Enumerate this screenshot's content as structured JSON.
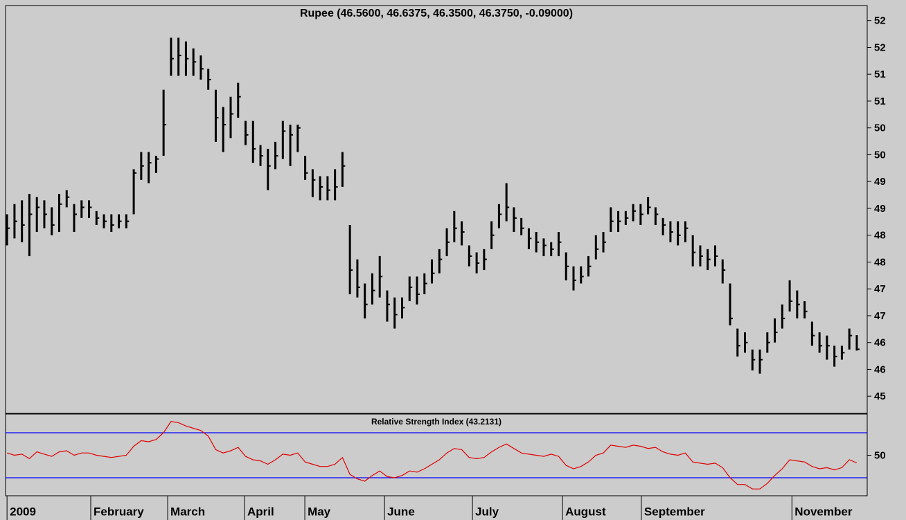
{
  "chart_data": [
    {
      "type": "ohlc",
      "title": "Rupee (46.5600, 46.6375, 46.3500, 46.3750, -0.09000)",
      "color": "#000000",
      "high": [
        48.89,
        49.08,
        49.15,
        49.27,
        49.21,
        49.15,
        49.02,
        49.27,
        49.34,
        49.08,
        49.15,
        49.15,
        48.95,
        48.89,
        48.89,
        48.89,
        48.89,
        49.73,
        50.05,
        50.05,
        49.98,
        51.21,
        52.18,
        52.18,
        52.11,
        51.98,
        51.85,
        51.6,
        51.21,
        50.89,
        51.08,
        51.34,
        50.63,
        50.63,
        50.18,
        50.11,
        50.24,
        50.63,
        50.56,
        50.56,
        49.98,
        49.73,
        49.6,
        49.6,
        49.73,
        50.05,
        48.69,
        48.05,
        47.6,
        47.79,
        48.11,
        47.47,
        47.34,
        47.34,
        47.73,
        47.73,
        47.79,
        48.05,
        48.24,
        48.63,
        48.95,
        48.76,
        48.31,
        48.18,
        48.24,
        48.76,
        49.08,
        49.47,
        49.02,
        48.82,
        48.63,
        48.56,
        48.44,
        48.37,
        48.56,
        48.18,
        47.92,
        47.92,
        48.11,
        48.5,
        48.56,
        49.02,
        48.95,
        48.95,
        49.08,
        49.08,
        49.21,
        49.02,
        48.82,
        48.76,
        48.76,
        48.76,
        48.5,
        48.31,
        48.24,
        48.31,
        48.05,
        47.6,
        46.76,
        46.69,
        46.37,
        46.37,
        46.69,
        46.95,
        47.21,
        47.66,
        47.47,
        47.27,
        46.89,
        46.69,
        46.63,
        46.44,
        46.44,
        46.76,
        46.6375
      ],
      "low": [
        48.31,
        48.44,
        48.37,
        48.11,
        48.56,
        48.63,
        48.5,
        48.56,
        49.02,
        48.56,
        48.82,
        48.82,
        48.69,
        48.63,
        48.56,
        48.63,
        48.63,
        48.89,
        49.53,
        49.47,
        49.66,
        49.98,
        51.47,
        51.47,
        51.47,
        51.47,
        51.4,
        51.21,
        50.24,
        50.05,
        50.31,
        50.69,
        50.18,
        49.85,
        49.79,
        49.34,
        49.73,
        49.92,
        49.79,
        50.05,
        49.53,
        49.21,
        49.15,
        49.15,
        49.15,
        49.4,
        47.4,
        47.34,
        46.95,
        47.21,
        47.34,
        46.89,
        46.76,
        46.95,
        47.27,
        47.21,
        47.4,
        47.6,
        47.79,
        48.11,
        48.37,
        48.31,
        47.92,
        47.79,
        47.85,
        48.24,
        48.63,
        48.76,
        48.56,
        48.5,
        48.24,
        48.18,
        48.11,
        48.11,
        48.11,
        47.66,
        47.47,
        47.6,
        47.73,
        48.05,
        48.18,
        48.56,
        48.56,
        48.69,
        48.76,
        48.69,
        48.89,
        48.69,
        48.5,
        48.37,
        48.31,
        48.37,
        47.92,
        47.92,
        47.85,
        47.92,
        47.6,
        46.82,
        46.24,
        46.31,
        45.98,
        45.92,
        46.31,
        46.5,
        46.76,
        47.08,
        46.95,
        46.95,
        46.44,
        46.31,
        46.18,
        46.05,
        46.18,
        46.37,
        46.35
      ],
      "close": [
        48.63,
        48.76,
        48.69,
        48.89,
        49.02,
        48.89,
        48.69,
        49.08,
        49.21,
        48.89,
        49.02,
        49.02,
        48.82,
        48.76,
        48.69,
        48.76,
        48.76,
        49.66,
        49.79,
        49.85,
        49.92,
        50.56,
        51.79,
        51.85,
        51.79,
        51.73,
        51.6,
        51.4,
        50.69,
        50.56,
        50.76,
        51.08,
        50.37,
        50.11,
        49.98,
        49.79,
        49.98,
        50.44,
        50.37,
        50.5,
        49.66,
        49.53,
        49.4,
        49.34,
        49.4,
        49.79,
        47.85,
        47.53,
        47.21,
        47.47,
        47.73,
        47.21,
        47.02,
        47.15,
        47.53,
        47.4,
        47.6,
        47.79,
        48.05,
        48.37,
        48.63,
        48.56,
        48.11,
        47.98,
        48.05,
        48.5,
        48.89,
        49.02,
        48.82,
        48.63,
        48.44,
        48.37,
        48.31,
        48.24,
        48.37,
        47.92,
        47.66,
        47.73,
        47.92,
        48.24,
        48.37,
        48.76,
        48.76,
        48.82,
        48.95,
        48.89,
        49.02,
        48.89,
        48.69,
        48.56,
        48.5,
        48.63,
        48.18,
        48.11,
        48.05,
        48.11,
        47.85,
        46.95,
        46.44,
        46.5,
        46.18,
        46.18,
        46.5,
        46.69,
        46.95,
        47.27,
        47.21,
        47.08,
        46.63,
        46.44,
        46.44,
        46.24,
        46.31,
        46.63,
        46.375
      ],
      "ylim": [
        45.18,
        52.78
      ],
      "yticks": [
        {
          "value": 52.5,
          "label": "52"
        },
        52,
        {
          "value": 51.5,
          "label": "51"
        },
        51,
        {
          "value": 50.5,
          "label": "50"
        },
        50,
        {
          "value": 49.5,
          "label": "49"
        },
        49,
        {
          "value": 48.5,
          "label": "48"
        },
        48,
        {
          "value": 47.5,
          "label": "47"
        },
        47,
        {
          "value": 46.5,
          "label": "46"
        },
        46,
        {
          "value": 45.5,
          "label": "45"
        }
      ]
    },
    {
      "type": "line",
      "title": "Relative Strength Index (43.2131)",
      "color": "#e00000",
      "values": [
        52,
        50,
        51,
        47,
        53,
        51,
        49,
        53,
        54,
        50,
        52,
        52,
        50,
        49,
        48,
        49,
        50,
        58,
        63,
        62,
        64,
        70,
        80,
        79,
        76,
        74,
        72,
        67,
        55,
        52,
        54,
        57,
        49,
        46,
        45,
        42,
        46,
        51,
        50,
        52,
        44,
        42,
        40,
        40,
        42,
        48,
        33,
        29,
        27,
        32,
        36,
        31,
        30,
        32,
        36,
        35,
        38,
        42,
        46,
        52,
        56,
        55,
        48,
        47,
        48,
        53,
        57,
        60,
        56,
        52,
        51,
        50,
        49,
        51,
        49,
        41,
        38,
        40,
        44,
        50,
        52,
        59,
        58,
        57,
        59,
        58,
        56,
        57,
        53,
        51,
        50,
        52,
        44,
        43,
        42,
        43,
        39,
        30,
        24,
        24,
        20,
        20,
        25,
        32,
        38,
        46,
        45,
        44,
        40,
        38,
        39,
        37,
        39,
        46,
        43.2131
      ],
      "ylim": [
        14,
        86.6
      ],
      "yticks": [
        50
      ],
      "levels": [
        70,
        30
      ],
      "level_color": "#0000ff",
      "xlim": [
        -0.2,
        115.4
      ],
      "xticks": [
        {
          "value": 0,
          "label": "2009"
        },
        {
          "value": 11.23,
          "label": "February"
        },
        {
          "value": 21.55,
          "label": "March"
        },
        {
          "value": 31.86,
          "label": "April"
        },
        {
          "value": 39.95,
          "label": "May"
        },
        {
          "value": 50.64,
          "label": "June"
        },
        {
          "value": 62.44,
          "label": "July"
        },
        {
          "value": 74.52,
          "label": "August"
        },
        {
          "value": 85.1,
          "label": "September"
        },
        {
          "value": 105.3,
          "label": "November"
        }
      ]
    }
  ]
}
